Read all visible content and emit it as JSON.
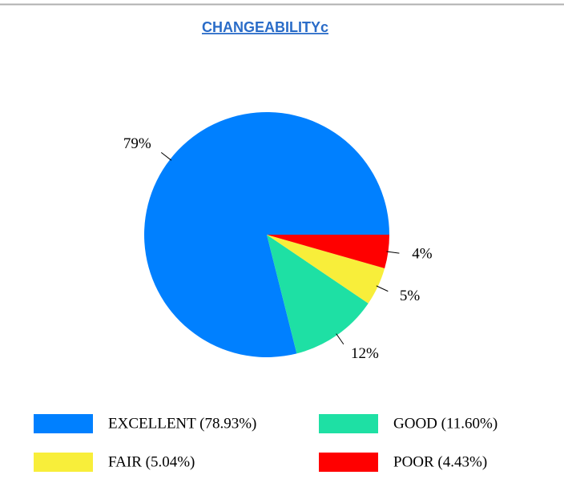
{
  "chart_data": {
    "type": "pie",
    "title": "CHANGEABILITYc",
    "categories": [
      "EXCELLENT (78.93%)",
      "GOOD (11.60%)",
      "FAIR (5.04%)",
      "POOR (4.43%)"
    ],
    "values": [
      78.93,
      11.6,
      5.04,
      4.43
    ],
    "value_labels": [
      "79%",
      "12%",
      "5%",
      "4%"
    ],
    "colors": [
      "#0080ff",
      "#1ee0a4",
      "#f8ee3a",
      "#ff0000"
    ]
  }
}
